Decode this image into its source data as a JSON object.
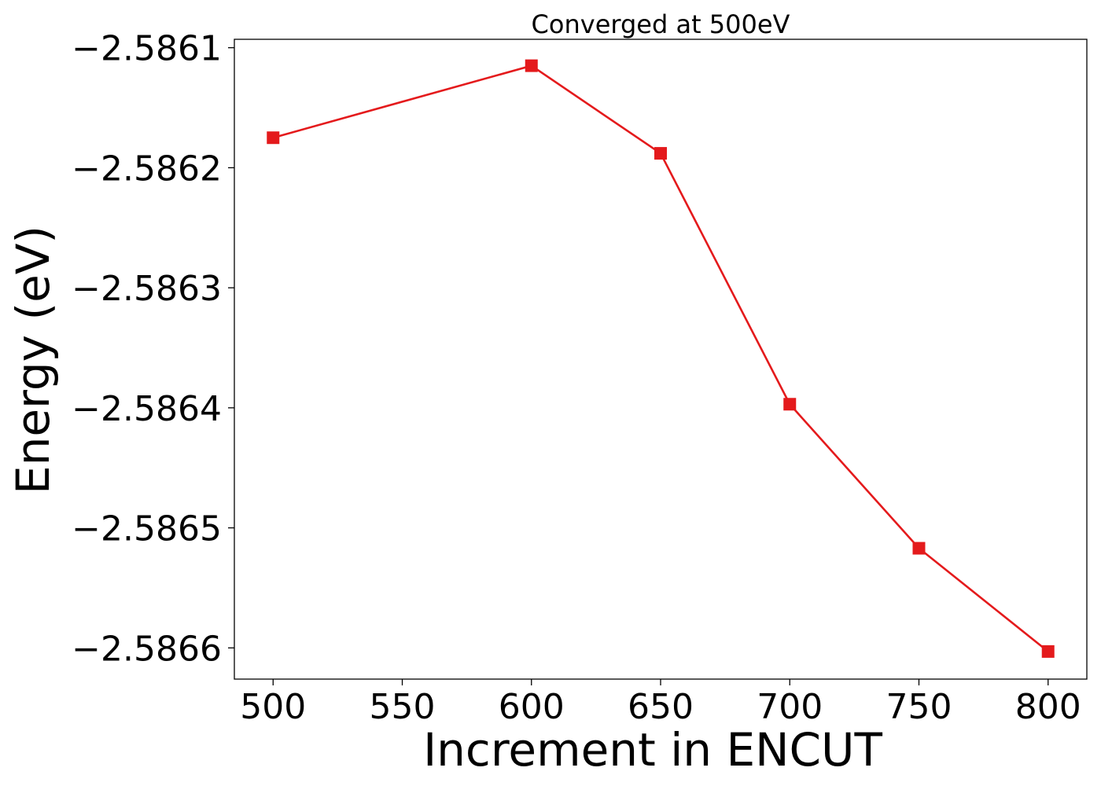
{
  "chart_data": {
    "type": "line",
    "title": "Converged at 500eV",
    "xlabel": "Increment in ENCUT",
    "ylabel": "Energy (eV)",
    "x": [
      500,
      600,
      650,
      700,
      750,
      800
    ],
    "series": [
      {
        "values": [
          -2.586175,
          -2.586115,
          -2.586188,
          -2.586397,
          -2.586517,
          -2.586603
        ],
        "color": "#e41a1c",
        "marker": "square"
      }
    ],
    "xlim": [
      485,
      815
    ],
    "ylim": [
      -2.586626,
      -2.586093
    ],
    "xticks": [
      500,
      550,
      600,
      650,
      700,
      750,
      800
    ],
    "xtick_labels": [
      "500",
      "550",
      "600",
      "650",
      "700",
      "750",
      "800"
    ],
    "yticks": [
      -2.5861,
      -2.5862,
      -2.5863,
      -2.5864,
      -2.5865,
      -2.5866
    ],
    "ytick_labels": [
      "−2.5861",
      "−2.5862",
      "−2.5863",
      "−2.5864",
      "−2.5865",
      "−2.5866"
    ],
    "grid": false,
    "legend": "none"
  }
}
